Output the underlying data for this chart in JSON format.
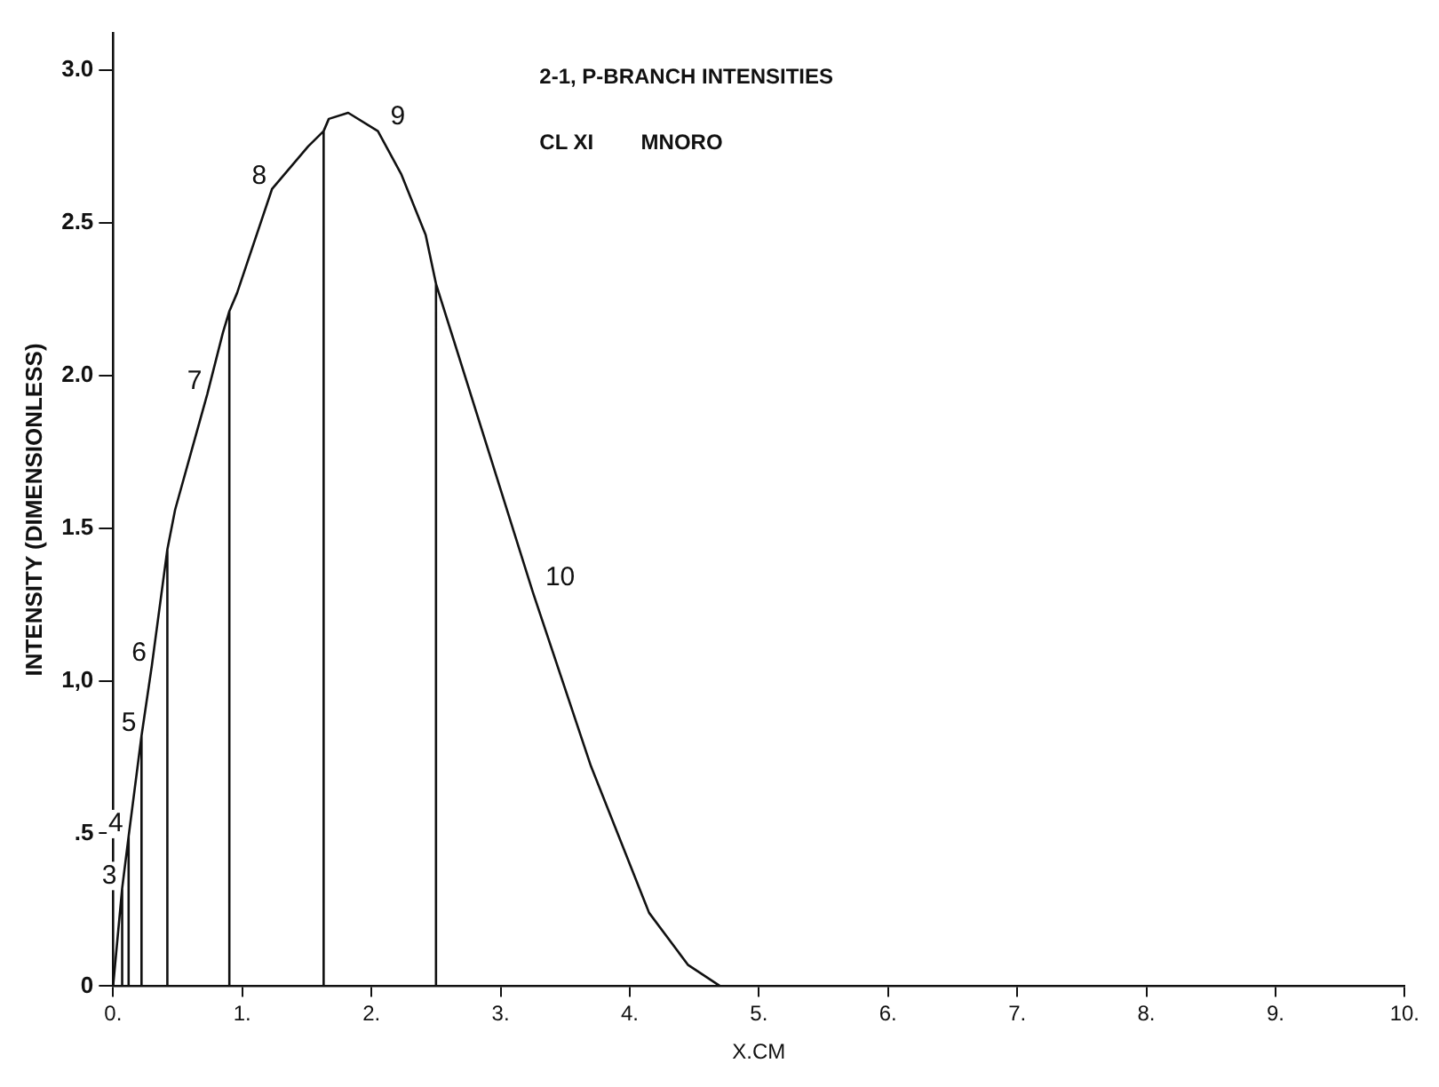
{
  "chart_data": {
    "type": "line",
    "title": "2-1, P-BRANCH INTENSITIES",
    "subtitle": "CL XI        MNORO",
    "xlabel": "X.CM",
    "ylabel": "INTENSITY (DIMENSIONLESS)",
    "x": [
      0,
      0.07,
      0.07,
      0.07,
      0.12,
      0.12,
      0.12,
      0.22,
      0.22,
      0.22,
      0.3,
      0.42,
      0.42,
      0.42,
      0.48,
      0.73,
      0.85,
      0.9,
      0.9,
      0.9,
      0.96,
      1.23,
      1.51,
      1.63,
      1.63,
      1.63,
      1.67,
      1.82,
      2.05,
      2.23,
      2.42,
      2.5,
      2.5,
      2.5,
      3.25,
      3.7,
      4.15,
      4.45,
      4.7,
      10
    ],
    "series": [
      {
        "color": "#111111",
        "values": [
          0,
          0.32,
          0,
          0.32,
          0.49,
          0,
          0.49,
          0.82,
          0,
          0.82,
          1.05,
          1.43,
          0,
          1.43,
          1.56,
          1.94,
          2.14,
          2.21,
          0,
          2.21,
          2.27,
          2.61,
          2.75,
          2.8,
          0,
          2.8,
          2.84,
          2.86,
          2.8,
          2.66,
          2.46,
          2.3,
          0,
          2.3,
          1.29,
          0.72,
          0.24,
          0.07,
          0,
          0
        ]
      }
    ],
    "annotations": [
      {
        "text": "3",
        "x": 0.07,
        "y": 0.32
      },
      {
        "text": "4",
        "x": 0.12,
        "y": 0.49
      },
      {
        "text": "5",
        "x": 0.22,
        "y": 0.82
      },
      {
        "text": "6",
        "x": 0.3,
        "y": 1.05
      },
      {
        "text": "7",
        "x": 0.73,
        "y": 1.94
      },
      {
        "text": "8",
        "x": 1.23,
        "y": 2.61
      },
      {
        "text": "9",
        "x": 2.05,
        "y": 2.8
      },
      {
        "text": "10",
        "x": 3.25,
        "y": 1.29
      }
    ],
    "xlim": [
      0,
      10
    ],
    "xticks": [
      {
        "value": 0,
        "label": "0."
      },
      {
        "value": 1,
        "label": "1."
      },
      {
        "value": 2,
        "label": "2."
      },
      {
        "value": 3,
        "label": "3."
      },
      {
        "value": 4,
        "label": "4."
      },
      {
        "value": 5,
        "label": "5."
      },
      {
        "value": 6,
        "label": "6."
      },
      {
        "value": 7,
        "label": "7."
      },
      {
        "value": 8,
        "label": "8."
      },
      {
        "value": 9,
        "label": "9."
      },
      {
        "value": 10,
        "label": "10."
      }
    ],
    "ylim": [
      0,
      3.12
    ],
    "yticks": [
      0,
      {
        "value": 0.5,
        "label": ".5"
      },
      {
        "value": 1,
        "label": "1,0"
      },
      {
        "value": 1.5,
        "label": "1.5"
      },
      {
        "value": 2,
        "label": "2.0"
      },
      {
        "value": 2.5,
        "label": "2.5"
      },
      {
        "value": 3,
        "label": "3.0"
      }
    ],
    "grid": false,
    "legend": false,
    "marker": "none",
    "line_style": "solid"
  }
}
